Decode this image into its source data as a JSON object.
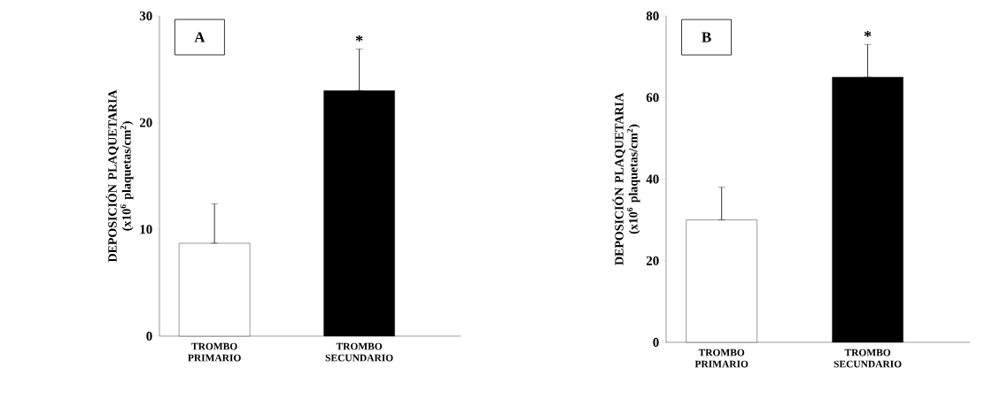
{
  "chart_data": [
    {
      "type": "bar",
      "title": "A",
      "categories": [
        "TROMBO PRIMARIO",
        "TROMBO SECUNDARIO"
      ],
      "values": [
        8.7,
        23
      ],
      "colors": [
        "#ffffff",
        "#000000"
      ],
      "errors": [
        [
          8.7,
          12.4
        ],
        [
          23,
          26.9
        ]
      ],
      "ylim": [
        0,
        30
      ],
      "yticks": [
        0,
        10,
        20,
        30
      ],
      "ylabel": "DEPOSICIÓN PLAQUETARIA (x10$^{6}$ plaquetas/cm$^{2}$)",
      "annotations": [
        "*"
      ]
    },
    {
      "type": "bar",
      "title": "B",
      "categories": [
        "TROMBO PRIMARIO",
        "TROMBO SECUNDARIO"
      ],
      "values": [
        30,
        65
      ],
      "colors": [
        "#ffffff",
        "#000000"
      ],
      "errors": [
        [
          30,
          38
        ],
        [
          65,
          73
        ]
      ],
      "ylim": [
        0,
        80
      ],
      "yticks": [
        0,
        20,
        40,
        60,
        80
      ],
      "ylabel": "DEPOSICIÓN PLAQUETARIA (x10$^{6}$ plaquetas/cm$^{2}$)",
      "annotations": [
        "*"
      ]
    }
  ]
}
